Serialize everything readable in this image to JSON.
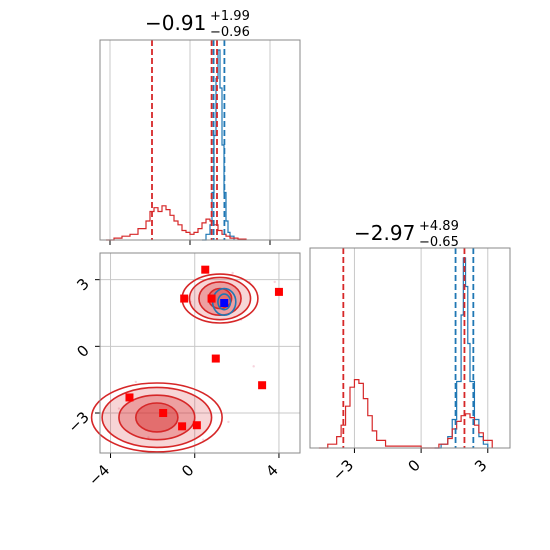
{
  "colors": {
    "blue": "#1f77b4",
    "red": "#d62728",
    "marker_red": "#ff0000",
    "marker_blue": "#0000ff",
    "grid": "#c8c8c8",
    "axis": "#888888"
  },
  "titles": {
    "param1": {
      "main": "−0.91",
      "sup": "+1.99",
      "sub": "−0.96"
    },
    "param2": {
      "main": "−2.97",
      "sup": "+4.89",
      "sub": "−0.65"
    }
  },
  "chart_data": [
    {
      "panel": "marginal-param1",
      "type": "line",
      "title": "−0.91 (+1.99 / −0.96)",
      "xlim": [
        -4.5,
        5.5
      ],
      "grid": true,
      "x_ticks": [
        -4,
        0,
        4
      ],
      "series": [
        {
          "color": "#1f77b4",
          "style": "step",
          "x": [
            0.6,
            0.8,
            1.0,
            1.1,
            1.2,
            1.3,
            1.4,
            1.5,
            1.6,
            1.7,
            1.8,
            1.9,
            2.0,
            2.2
          ],
          "y": [
            0.0,
            0.03,
            0.08,
            0.25,
            0.55,
            0.85,
            1.0,
            0.8,
            0.5,
            0.25,
            0.1,
            0.04,
            0.02,
            0.0
          ]
        },
        {
          "color": "#d62728",
          "style": "step",
          "x": [
            -4.2,
            -3.8,
            -3.4,
            -3.0,
            -2.6,
            -2.2,
            -2.0,
            -1.8,
            -1.6,
            -1.4,
            -1.2,
            -1.0,
            -0.8,
            -0.6,
            -0.4,
            -0.2,
            0.0,
            0.2,
            0.4,
            0.6,
            0.8,
            1.0,
            1.2,
            1.4,
            1.6,
            1.8,
            2.0,
            2.4,
            2.8
          ],
          "y": [
            0.0,
            0.01,
            0.02,
            0.03,
            0.06,
            0.1,
            0.15,
            0.17,
            0.15,
            0.18,
            0.16,
            0.13,
            0.1,
            0.08,
            0.05,
            0.04,
            0.03,
            0.04,
            0.06,
            0.09,
            0.11,
            0.1,
            0.08,
            0.05,
            0.03,
            0.02,
            0.01,
            0.005,
            0.0
          ]
        }
      ],
      "vlines": [
        {
          "color": "#d62728",
          "x": -1.9
        },
        {
          "color": "#d62728",
          "x": 1.08
        },
        {
          "color": "#1f77b4",
          "x": 1.18
        },
        {
          "color": "#d62728",
          "x": 1.35
        },
        {
          "color": "#1f77b4",
          "x": 1.72
        }
      ]
    },
    {
      "panel": "marginal-param2",
      "type": "line",
      "title": "−2.97 (+4.89 / −0.65)",
      "xlim": [
        -5.0,
        4.0
      ],
      "grid": true,
      "x_ticks": [
        -3,
        0,
        3
      ],
      "series": [
        {
          "color": "#1f77b4",
          "style": "step",
          "x": [
            0.6,
            0.9,
            1.2,
            1.4,
            1.6,
            1.8,
            1.9,
            2.0,
            2.1,
            2.2,
            2.4,
            2.6,
            2.8,
            3.0
          ],
          "y": [
            0.0,
            0.02,
            0.06,
            0.15,
            0.35,
            0.7,
            1.0,
            0.85,
            0.55,
            0.35,
            0.15,
            0.06,
            0.02,
            0.0
          ]
        },
        {
          "color": "#d62728",
          "style": "step",
          "x": [
            -4.6,
            -4.2,
            -3.8,
            -3.6,
            -3.4,
            -3.2,
            -3.0,
            -2.8,
            -2.6,
            -2.4,
            -2.2,
            -2.0,
            -1.6,
            0.0,
            0.8,
            1.2,
            1.4,
            1.6,
            1.8,
            2.0,
            2.2,
            2.4,
            2.6,
            2.8,
            3.2
          ],
          "y": [
            0.0,
            0.02,
            0.06,
            0.12,
            0.22,
            0.32,
            0.36,
            0.34,
            0.26,
            0.17,
            0.09,
            0.04,
            0.01,
            0.0,
            0.02,
            0.05,
            0.1,
            0.14,
            0.17,
            0.18,
            0.16,
            0.12,
            0.08,
            0.04,
            0.0
          ]
        }
      ],
      "vlines": [
        {
          "color": "#d62728",
          "x": -3.5
        },
        {
          "color": "#1f77b4",
          "x": 1.55
        },
        {
          "color": "#d62728",
          "x": 1.95
        },
        {
          "color": "#1f77b4",
          "x": 2.35
        }
      ]
    },
    {
      "panel": "joint-param1-param2",
      "type": "scatter",
      "xlim": [
        -4.5,
        5.0
      ],
      "ylim": [
        -4.8,
        4.2
      ],
      "grid": true,
      "x_ticks": [
        -4,
        0,
        4
      ],
      "y_ticks": [
        -3,
        0,
        3
      ],
      "contours": [
        {
          "color": "#d62728",
          "cx": 1.2,
          "cy": 2.15,
          "rx": [
            0.55,
            1.0,
            1.45,
            1.8
          ],
          "ry": [
            0.45,
            0.75,
            0.95,
            1.1
          ],
          "alpha": [
            0.75,
            0.55,
            0.35,
            0.0
          ]
        },
        {
          "color": "#d62728",
          "cx": -1.8,
          "cy": -3.2,
          "rx": [
            1.0,
            1.8,
            2.6,
            3.1
          ],
          "ry": [
            0.65,
            1.0,
            1.35,
            1.55
          ],
          "alpha": [
            0.75,
            0.55,
            0.35,
            0.0
          ]
        },
        {
          "color": "#1f77b4",
          "cx": 1.4,
          "cy": 2.0,
          "rx": [
            0.3,
            0.55
          ],
          "ry": [
            0.35,
            0.6
          ],
          "alpha": [
            0.0,
            0.0
          ]
        }
      ],
      "points": [
        {
          "x": 0.5,
          "y": 3.45,
          "color": "#ff0000"
        },
        {
          "x": -0.5,
          "y": 2.15,
          "color": "#ff0000"
        },
        {
          "x": 0.8,
          "y": 2.15,
          "color": "#ff0000"
        },
        {
          "x": 1.4,
          "y": 1.95,
          "color": "#0000ff"
        },
        {
          "x": 4.0,
          "y": 2.45,
          "color": "#ff0000"
        },
        {
          "x": 1.0,
          "y": -0.55,
          "color": "#ff0000"
        },
        {
          "x": 3.2,
          "y": -1.75,
          "color": "#ff0000"
        },
        {
          "x": -3.1,
          "y": -2.3,
          "color": "#ff0000"
        },
        {
          "x": -1.5,
          "y": -3.0,
          "color": "#ff0000"
        },
        {
          "x": -0.6,
          "y": -3.6,
          "color": "#ff0000"
        },
        {
          "x": 0.1,
          "y": -3.55,
          "color": "#ff0000"
        }
      ]
    }
  ]
}
